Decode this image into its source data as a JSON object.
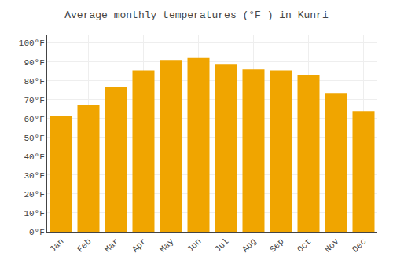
{
  "chart_data": {
    "type": "bar",
    "title": "Average monthly temperatures (°F ) in Kunri",
    "categories": [
      "Jan",
      "Feb",
      "Mar",
      "Apr",
      "May",
      "Jun",
      "Jul",
      "Aug",
      "Sep",
      "Oct",
      "Nov",
      "Dec"
    ],
    "values": [
      61.5,
      67.0,
      76.5,
      85.5,
      91.0,
      92.0,
      88.5,
      86.0,
      85.5,
      83.0,
      73.5,
      64.0
    ],
    "color": "#F0A500",
    "ylim": [
      0,
      104
    ],
    "yticks": [
      {
        "value": 0,
        "label": "0°F"
      },
      {
        "value": 10,
        "label": "10°F"
      },
      {
        "value": 20,
        "label": "20°F"
      },
      {
        "value": 30,
        "label": "30°F"
      },
      {
        "value": 40,
        "label": "40°F"
      },
      {
        "value": 50,
        "label": "50°F"
      },
      {
        "value": 60,
        "label": "60°F"
      },
      {
        "value": 70,
        "label": "70°F"
      },
      {
        "value": 80,
        "label": "80°F"
      },
      {
        "value": 90,
        "label": "90°F"
      },
      {
        "value": 100,
        "label": "100°F"
      }
    ],
    "grid": true
  }
}
